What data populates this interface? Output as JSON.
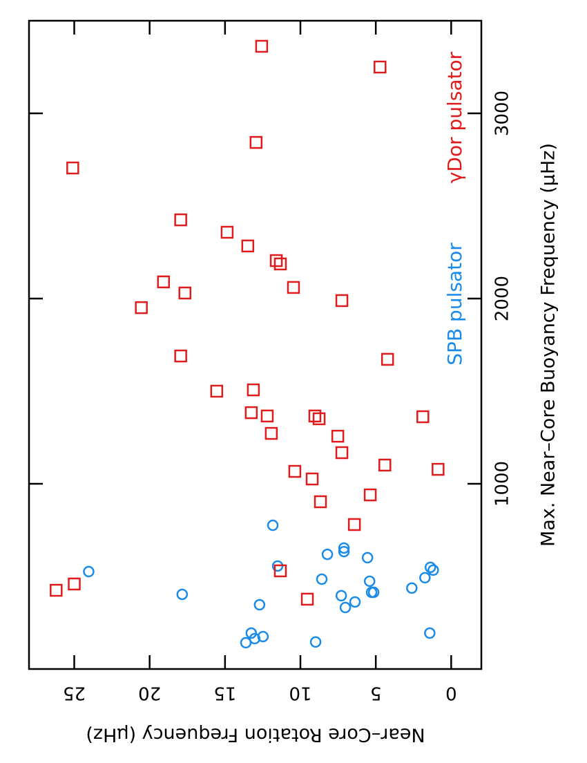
{
  "chart_data": {
    "type": "scatter",
    "x_label": "Max. Near–Core Buoyancy Frequency (μHz)",
    "y_label": "Near–Core Rotation Frequency (μHz)",
    "xlim": [
      0,
      3500
    ],
    "xticks": [
      1000,
      2000,
      3000
    ],
    "ylim": [
      -2,
      28
    ],
    "yticks": [
      0,
      5,
      10,
      15,
      20,
      25
    ],
    "series": [
      {
        "name": "SPB pulsator",
        "color": "#1a8be8",
        "marker": "circle",
        "x": [
          776,
          619,
          653,
          634,
          601,
          556,
          526,
          485,
          474,
          403,
          396,
          414,
          414,
          362,
          332,
          347,
          437,
          493,
          549,
          534,
          194,
          164,
          175,
          142,
          146,
          194
        ],
        "values": [
          11.83,
          8.21,
          7.11,
          7.11,
          5.55,
          11.51,
          24.04,
          8.58,
          5.41,
          17.84,
          7.29,
          5.28,
          5.14,
          6.38,
          7.02,
          12.71,
          2.61,
          1.74,
          1.38,
          1.19,
          13.26,
          13.03,
          12.48,
          13.62,
          8.99,
          1.42
        ]
      },
      {
        "name": "γDor pulsator",
        "color": "#e01b1b",
        "marker": "square",
        "x": [
          3362,
          3250,
          2843,
          2705,
          2425,
          2358,
          2284,
          2205,
          2187,
          2090,
          2060,
          2030,
          1989,
          1951,
          1672,
          1690,
          1500,
          1507,
          1384,
          1366,
          1272,
          1366,
          1351,
          1362,
          1257,
          1168,
          1101,
          1067,
          1078,
          1026,
          940,
          903,
          780,
          530,
          377,
          425,
          459
        ],
        "values": [
          12.57,
          4.72,
          12.94,
          25.1,
          17.94,
          14.86,
          13.49,
          11.6,
          11.33,
          19.08,
          10.46,
          17.66,
          7.25,
          20.55,
          4.22,
          17.94,
          15.55,
          13.12,
          13.26,
          12.2,
          11.93,
          9.04,
          8.76,
          1.88,
          7.52,
          7.25,
          4.4,
          10.37,
          0.87,
          9.22,
          5.37,
          8.67,
          6.42,
          11.33,
          9.54,
          26.2,
          25.0
        ]
      }
    ]
  }
}
